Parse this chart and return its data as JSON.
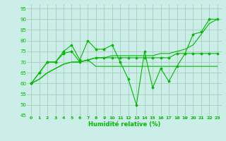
{
  "xlabel": "Humidité relative (%)",
  "xlim": [
    0,
    23
  ],
  "ylim": [
    45,
    97
  ],
  "yticks": [
    45,
    50,
    55,
    60,
    65,
    70,
    75,
    80,
    85,
    90,
    95
  ],
  "xticks": [
    0,
    1,
    2,
    3,
    4,
    5,
    6,
    7,
    8,
    9,
    10,
    11,
    12,
    13,
    14,
    15,
    16,
    17,
    18,
    19,
    20,
    21,
    22,
    23
  ],
  "bg_color": "#cceee8",
  "grid_color": "#aaccbb",
  "line_color": "#00bb00",
  "line1": [
    60,
    65,
    70,
    70,
    75,
    78,
    71,
    80,
    76,
    76,
    78,
    70,
    62,
    50,
    75,
    58,
    67,
    61,
    68,
    74,
    83,
    84,
    90,
    90
  ],
  "line2": [
    60,
    65,
    70,
    70,
    74,
    75,
    70,
    71,
    72,
    72,
    72,
    72,
    72,
    72,
    72,
    72,
    72,
    72,
    74,
    74,
    74,
    74,
    74,
    74
  ],
  "line3": [
    60,
    62,
    65,
    67,
    69,
    70,
    70,
    71,
    72,
    72,
    73,
    73,
    73,
    73,
    73,
    73,
    74,
    74,
    75,
    76,
    78,
    83,
    88,
    90
  ],
  "line4": [
    60,
    62,
    65,
    67,
    69,
    70,
    70,
    71,
    68,
    68,
    68,
    68,
    68,
    68,
    68,
    68,
    68,
    68,
    68,
    68,
    68,
    68,
    68,
    68
  ]
}
